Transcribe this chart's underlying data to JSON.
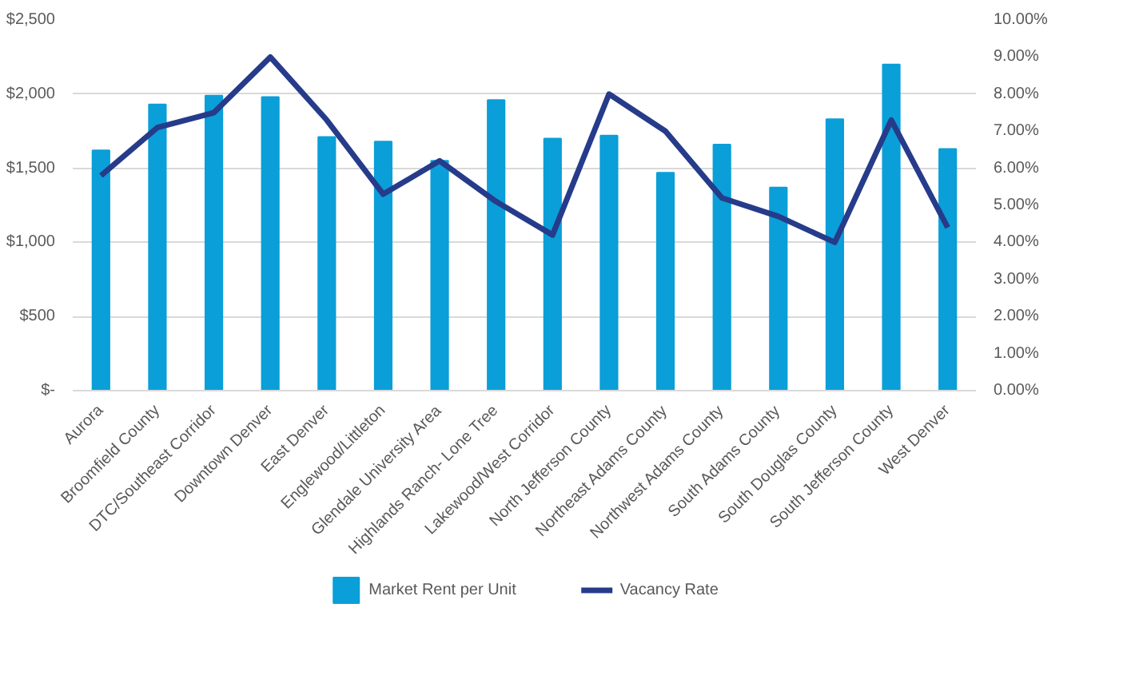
{
  "chart_data": {
    "type": "bar",
    "categories": [
      "Aurora",
      "Broomfield County",
      "DTC/Southeast Corridor",
      "Downtown Denver",
      "East Denver",
      "Englewood/Littleton",
      "Glendale University Area",
      "Highlands Ranch- Lone Tree",
      "Lakewood/West Corridor",
      "North Jefferson County",
      "Northeast Adams County",
      "Northwest Adams County",
      "South Adams County",
      "South Douglas County",
      "South Jefferson County",
      "West Denver"
    ],
    "series": [
      {
        "name": "Market Rent per Unit",
        "color": "#0a9fd8",
        "values": [
          1620,
          1930,
          1990,
          1980,
          1710,
          1680,
          1550,
          1960,
          1700,
          1720,
          1470,
          1660,
          1370,
          1830,
          2200,
          1630
        ]
      },
      {
        "name": "Vacancy Rate",
        "type": "line",
        "axis": "y2",
        "color": "#263b8a",
        "values": [
          5.8,
          7.1,
          7.5,
          9.0,
          7.3,
          5.3,
          6.2,
          5.1,
          4.2,
          8.0,
          7.0,
          5.2,
          4.7,
          4.0,
          7.3,
          4.4
        ]
      }
    ],
    "ylim": [
      0,
      2500
    ],
    "yticks": [
      {
        "value": 0,
        "label": "$-"
      },
      {
        "value": 500,
        "label": "$500"
      },
      {
        "value": 1000,
        "label": "$1,000"
      },
      {
        "value": 1500,
        "label": "$1,500"
      },
      {
        "value": 2000,
        "label": "$2,000"
      },
      {
        "value": 2500,
        "label": "$2,500"
      }
    ],
    "y2lim": [
      0,
      10
    ],
    "y2ticks": [
      {
        "value": 0,
        "label": "0.00%"
      },
      {
        "value": 1,
        "label": "1.00%"
      },
      {
        "value": 2,
        "label": "2.00%"
      },
      {
        "value": 3,
        "label": "3.00%"
      },
      {
        "value": 4,
        "label": "4.00%"
      },
      {
        "value": 5,
        "label": "5.00%"
      },
      {
        "value": 6,
        "label": "6.00%"
      },
      {
        "value": 7,
        "label": "7.00%"
      },
      {
        "value": 8,
        "label": "8.00%"
      },
      {
        "value": 9,
        "label": "9.00%"
      },
      {
        "value": 10,
        "label": "10.00%"
      }
    ],
    "grid": "y",
    "legend": "bottom"
  }
}
